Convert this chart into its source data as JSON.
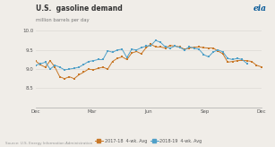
{
  "title": "U.S.  gasoline demand",
  "subtitle": "million barrels per day",
  "source": "Source: U.S. Energy Information Administration",
  "ylim": [
    8.0,
    10.0
  ],
  "yticks": [
    8.5,
    9.0,
    9.5,
    10.0
  ],
  "ytick_labels": [
    "8.5",
    "9.0",
    "9.5",
    "10.0"
  ],
  "xtick_labels": [
    "Dec",
    "Mar",
    "Jun",
    "Sep",
    "Dec"
  ],
  "xtick_pos": [
    0.0,
    0.25,
    0.5,
    0.75,
    1.0
  ],
  "legend_labels": [
    "2017-18  4-wk. Avg",
    "2018-19  4-wk. Avg"
  ],
  "color_2017": "#c87828",
  "color_2018": "#50a0c8",
  "eia_color": "#005596",
  "background_color": "#f0ede8",
  "grid_color": "#e0ddd8",
  "text_color": "#555555",
  "series_2017": [
    9.21,
    9.11,
    9.05,
    9.22,
    9.05,
    8.8,
    8.75,
    8.8,
    8.75,
    8.85,
    8.92,
    9.0,
    8.98,
    9.02,
    9.05,
    9.0,
    9.2,
    9.28,
    9.32,
    9.25,
    9.42,
    9.46,
    9.4,
    9.56,
    9.65,
    9.58,
    9.58,
    9.55,
    9.62,
    9.6,
    9.58,
    9.52,
    9.55,
    9.57,
    9.58,
    9.56,
    9.55,
    9.55,
    9.47,
    9.4,
    9.18,
    9.2,
    9.22,
    9.23,
    9.22,
    9.2,
    9.1,
    9.06
  ],
  "series_2018": [
    9.1,
    9.14,
    9.18,
    9.0,
    9.1,
    9.05,
    8.98,
    9.0,
    9.02,
    9.05,
    9.12,
    9.2,
    9.22,
    9.25,
    9.25,
    9.48,
    9.44,
    9.5,
    9.52,
    9.3,
    9.52,
    9.5,
    9.56,
    9.6,
    9.62,
    9.75,
    9.7,
    9.58,
    9.55,
    9.6,
    9.57,
    9.5,
    9.58,
    9.55,
    9.52,
    9.38,
    9.32,
    9.45,
    9.5,
    9.45,
    9.28,
    9.25,
    9.28,
    9.25,
    9.15,
    null,
    null,
    null
  ]
}
